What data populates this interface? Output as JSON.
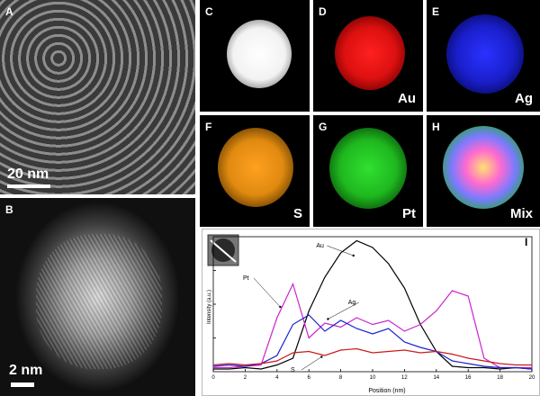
{
  "panels": {
    "A": {
      "letter": "A",
      "scale": "20 nm"
    },
    "B": {
      "letter": "B",
      "scale": "2 nm"
    },
    "C": {
      "letter": "C",
      "element": "",
      "color": "#ffffff"
    },
    "D": {
      "letter": "D",
      "element": "Au",
      "color": "#ff1a1a"
    },
    "E": {
      "letter": "E",
      "element": "Ag",
      "color": "#1a22ff"
    },
    "F": {
      "letter": "F",
      "element": "S",
      "color": "#ff9a1a"
    },
    "G": {
      "letter": "G",
      "element": "Pt",
      "color": "#22cc22"
    },
    "H": {
      "letter": "H",
      "element": "Mix",
      "color": "#ffffff"
    }
  },
  "chart_data": {
    "type": "line",
    "panel_letter": "I",
    "xlabel": "Position (nm)",
    "ylabel": "Intensity (a.u.)",
    "xlim": [
      0,
      20
    ],
    "ylim": [
      0,
      1
    ],
    "xticks": [
      0,
      2,
      4,
      6,
      8,
      10,
      12,
      14,
      16,
      18,
      20
    ],
    "grid": false,
    "x": [
      0,
      1,
      2,
      3,
      4,
      5,
      6,
      7,
      8,
      9,
      10,
      11,
      12,
      13,
      14,
      15,
      16,
      17,
      18,
      19,
      20
    ],
    "series": [
      {
        "name": "Au",
        "color": "#000000",
        "values": [
          0.02,
          0.02,
          0.03,
          0.02,
          0.05,
          0.1,
          0.45,
          0.7,
          0.88,
          0.97,
          0.92,
          0.8,
          0.62,
          0.35,
          0.15,
          0.04,
          0.03,
          0.03,
          0.02,
          0.03,
          0.02
        ]
      },
      {
        "name": "Pt",
        "color": "#cc22cc",
        "values": [
          0.03,
          0.03,
          0.04,
          0.05,
          0.4,
          0.65,
          0.25,
          0.36,
          0.33,
          0.4,
          0.35,
          0.38,
          0.3,
          0.35,
          0.45,
          0.6,
          0.56,
          0.1,
          0.03,
          0.03,
          0.03
        ]
      },
      {
        "name": "Ag",
        "color": "#1a22cc",
        "values": [
          0.04,
          0.05,
          0.04,
          0.06,
          0.12,
          0.35,
          0.42,
          0.3,
          0.38,
          0.32,
          0.28,
          0.32,
          0.22,
          0.18,
          0.15,
          0.08,
          0.06,
          0.04,
          0.03,
          0.03,
          0.02
        ]
      },
      {
        "name": "S",
        "color": "#cc1a1a",
        "values": [
          0.05,
          0.06,
          0.05,
          0.06,
          0.08,
          0.14,
          0.15,
          0.12,
          0.16,
          0.17,
          0.14,
          0.15,
          0.16,
          0.14,
          0.15,
          0.13,
          0.1,
          0.08,
          0.06,
          0.05,
          0.05
        ]
      }
    ],
    "annotations": [
      "Au",
      "Pt",
      "Ag",
      "S"
    ]
  }
}
